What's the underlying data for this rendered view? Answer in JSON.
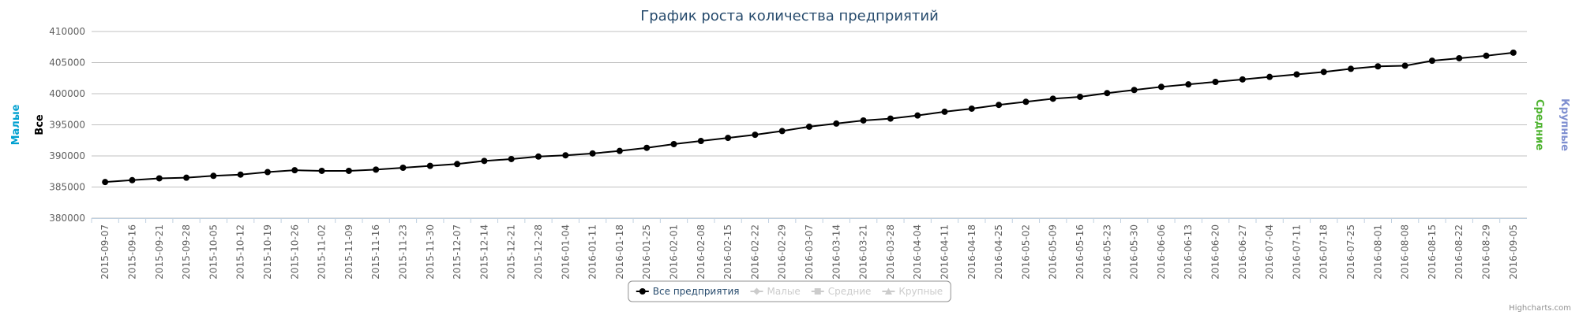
{
  "chart_data": {
    "type": "line",
    "title": "График роста количества предприятий",
    "categories": [
      "2015-09-07",
      "2015-09-16",
      "2015-09-21",
      "2015-09-28",
      "2015-10-05",
      "2015-10-12",
      "2015-10-19",
      "2015-10-26",
      "2015-11-02",
      "2015-11-09",
      "2015-11-16",
      "2015-11-23",
      "2015-11-30",
      "2015-12-07",
      "2015-12-14",
      "2015-12-21",
      "2015-12-28",
      "2016-01-04",
      "2016-01-11",
      "2016-01-18",
      "2016-01-25",
      "2016-02-01",
      "2016-02-08",
      "2016-02-15",
      "2016-02-22",
      "2016-02-29",
      "2016-03-07",
      "2016-03-14",
      "2016-03-21",
      "2016-03-28",
      "2016-04-04",
      "2016-04-11",
      "2016-04-18",
      "2016-04-25",
      "2016-05-02",
      "2016-05-09",
      "2016-05-16",
      "2016-05-23",
      "2016-05-30",
      "2016-06-06",
      "2016-06-13",
      "2016-06-20",
      "2016-06-27",
      "2016-07-04",
      "2016-07-11",
      "2016-07-18",
      "2016-07-25",
      "2016-08-01",
      "2016-08-08",
      "2016-08-15",
      "2016-08-22",
      "2016-08-29",
      "2016-09-05"
    ],
    "series": [
      {
        "name": "Все предприятия",
        "color": "#000000",
        "marker": "circle",
        "visible": true,
        "values": [
          385800,
          386100,
          386400,
          386500,
          386800,
          387000,
          387400,
          387700,
          387600,
          387600,
          387800,
          388100,
          388400,
          388700,
          389200,
          389500,
          389900,
          390100,
          390400,
          390800,
          391300,
          391900,
          392400,
          392900,
          393400,
          394000,
          394700,
          395200,
          395700,
          396000,
          396500,
          397100,
          397600,
          398200,
          398700,
          399200,
          399500,
          400100,
          400600,
          401100,
          401500,
          401900,
          402300,
          402700,
          403100,
          403500,
          404000,
          404400,
          404500,
          405300,
          405700,
          406100,
          406600
        ]
      },
      {
        "name": "Малые",
        "color": "#00a0d0",
        "marker": "diamond",
        "visible": false
      },
      {
        "name": "Средние",
        "color": "#50b432",
        "marker": "square",
        "visible": false
      },
      {
        "name": "Крупные",
        "color": "#7f8fd0",
        "marker": "triangle",
        "visible": false
      }
    ],
    "axis_titles": [
      {
        "text": "Малые",
        "color": "#00a0d0",
        "side": "left"
      },
      {
        "text": "Все",
        "color": "#000000",
        "side": "left"
      },
      {
        "text": "Средние",
        "color": "#50b432",
        "side": "right"
      },
      {
        "text": "Крупные",
        "color": "#7f8fd0",
        "side": "right"
      }
    ],
    "ylim": [
      380000,
      410000
    ],
    "yticks": [
      380000,
      385000,
      390000,
      395000,
      400000,
      405000,
      410000
    ],
    "grid": true,
    "legend": "bottom",
    "credits": "Highcharts.com"
  }
}
